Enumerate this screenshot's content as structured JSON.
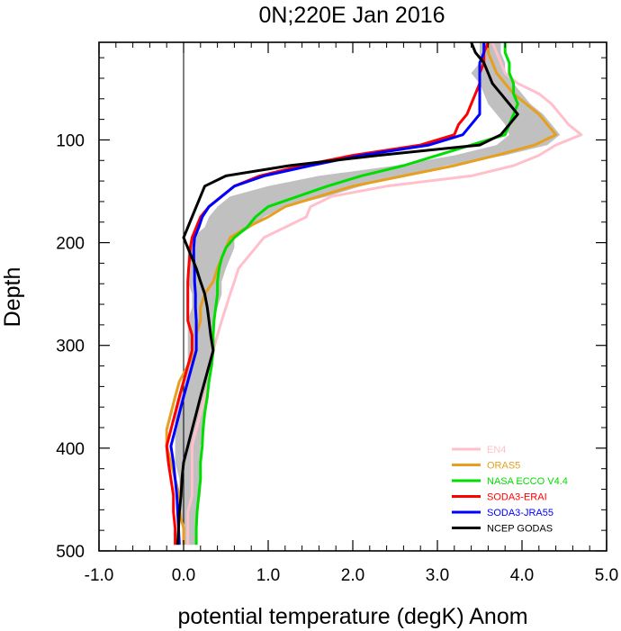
{
  "chart_data": {
    "type": "line",
    "title": "0N;220E Jan 2016",
    "xlabel": "potential temperature (degK)  Anom",
    "ylabel": "Depth",
    "xlim": [
      -1.0,
      5.0
    ],
    "ylim": [
      500,
      5
    ],
    "y_inverted": true,
    "x_ticks": [
      -1.0,
      0.0,
      1.0,
      2.0,
      3.0,
      4.0,
      5.0
    ],
    "x_tick_labels": [
      "-1.0",
      "0.0",
      "1.0",
      "2.0",
      "3.0",
      "4.0",
      "5.0"
    ],
    "y_ticks": [
      100,
      200,
      300,
      400,
      500
    ],
    "y_tick_labels": [
      "100",
      "200",
      "300",
      "400",
      "500"
    ],
    "zero_line": 0,
    "legend_position": "bottom-right",
    "spread_band": {
      "color": "#c0c0c0",
      "depths": [
        5,
        15,
        25,
        35,
        45,
        55,
        65,
        75,
        85,
        95,
        105,
        115,
        125,
        135,
        145,
        155,
        165,
        175,
        185,
        195,
        205,
        215,
        225,
        238,
        250,
        263,
        276,
        290,
        305,
        320,
        335,
        350,
        366,
        382,
        398,
        414,
        430,
        446,
        462,
        478,
        494
      ],
      "lower": [
        3.5,
        3.5,
        3.5,
        3.4,
        3.5,
        3.55,
        3.6,
        3.7,
        3.8,
        3.85,
        3.7,
        3.2,
        2.5,
        1.6,
        1.0,
        0.55,
        0.4,
        0.3,
        0.25,
        0.1,
        0.05,
        0.05,
        0.05,
        0.05,
        0.1,
        0.1,
        0.05,
        0.05,
        0.05,
        0.05,
        0.0,
        -0.05,
        -0.1,
        -0.1,
        -0.1,
        -0.1,
        -0.05,
        -0.05,
        -0.05,
        0.0,
        0.0
      ],
      "upper": [
        3.75,
        3.75,
        3.8,
        3.8,
        3.9,
        4.0,
        4.1,
        4.25,
        4.35,
        4.45,
        4.3,
        3.8,
        3.1,
        2.6,
        2.1,
        1.7,
        1.2,
        0.95,
        0.8,
        0.6,
        0.6,
        0.55,
        0.5,
        0.45,
        0.45,
        0.4,
        0.35,
        0.35,
        0.35,
        0.35,
        0.3,
        0.3,
        0.25,
        0.25,
        0.2,
        0.2,
        0.2,
        0.2,
        0.15,
        0.15,
        0.15
      ]
    },
    "series": [
      {
        "name": "EN4",
        "color": "#ffc0cb",
        "depths": [
          5,
          15,
          25,
          35,
          45,
          55,
          65,
          75,
          85,
          95,
          105,
          115,
          125,
          135,
          145,
          155,
          165,
          175,
          185,
          195,
          205,
          215,
          225,
          238,
          250,
          263,
          276,
          290,
          305,
          320,
          335,
          350,
          366,
          382,
          398,
          414,
          430,
          446,
          462,
          478,
          494
        ],
        "values": [
          3.65,
          3.7,
          3.75,
          3.8,
          3.95,
          4.2,
          4.35,
          4.45,
          4.55,
          4.7,
          4.4,
          4.2,
          3.9,
          3.4,
          2.4,
          1.75,
          1.5,
          1.45,
          1.2,
          0.95,
          0.85,
          0.75,
          0.65,
          0.6,
          0.55,
          0.5,
          0.45,
          0.4,
          0.35,
          0.3,
          0.3,
          0.25,
          0.2,
          0.15,
          0.1,
          0.1,
          0.1,
          0.1,
          0.05,
          0.05,
          0.05
        ]
      },
      {
        "name": "ORAS5",
        "color": "#e69f1e",
        "depths": [
          5,
          15,
          25,
          35,
          45,
          55,
          65,
          75,
          85,
          95,
          105,
          115,
          125,
          135,
          145,
          155,
          165,
          175,
          185,
          195,
          205,
          215,
          225,
          238,
          250,
          263,
          276,
          290,
          305,
          320,
          335,
          350,
          366,
          382,
          398,
          414,
          430,
          446,
          462,
          478,
          494
        ],
        "values": [
          3.6,
          3.6,
          3.65,
          3.7,
          3.8,
          3.9,
          4.05,
          4.2,
          4.3,
          4.4,
          4.15,
          3.7,
          3.2,
          2.6,
          2.0,
          1.6,
          1.2,
          1.0,
          0.75,
          0.55,
          0.5,
          0.45,
          0.4,
          0.35,
          0.25,
          0.2,
          0.2,
          0.15,
          0.15,
          0.05,
          -0.05,
          -0.1,
          -0.15,
          -0.2,
          -0.2,
          -0.15,
          -0.1,
          -0.05,
          -0.05,
          0.0,
          0.0
        ]
      },
      {
        "name": "NASA ECCO V4.4",
        "color": "#00dd00",
        "depths": [
          5,
          15,
          25,
          35,
          45,
          55,
          65,
          75,
          85,
          95,
          105,
          115,
          125,
          135,
          145,
          155,
          165,
          175,
          185,
          195,
          205,
          215,
          225,
          238,
          250,
          263,
          276,
          290,
          305,
          320,
          335,
          350,
          366,
          382,
          398,
          414,
          430,
          446,
          462,
          478,
          494
        ],
        "values": [
          3.8,
          3.8,
          3.85,
          3.85,
          3.9,
          3.9,
          3.95,
          3.9,
          3.85,
          3.8,
          3.4,
          3.0,
          2.6,
          2.1,
          1.7,
          1.35,
          1.0,
          0.85,
          0.75,
          0.6,
          0.5,
          0.45,
          0.42,
          0.4,
          0.4,
          0.38,
          0.36,
          0.35,
          0.35,
          0.33,
          0.3,
          0.28,
          0.25,
          0.23,
          0.22,
          0.2,
          0.2,
          0.18,
          0.16,
          0.15,
          0.15
        ]
      },
      {
        "name": "SODA3-ERAI",
        "color": "#ff0000",
        "depths": [
          5,
          15,
          25,
          35,
          45,
          55,
          65,
          75,
          85,
          95,
          105,
          115,
          125,
          135,
          145,
          155,
          165,
          175,
          185,
          195,
          205,
          215,
          225,
          238,
          250,
          263,
          276,
          290,
          305,
          320,
          335,
          350,
          366,
          382,
          398,
          414,
          430,
          446,
          462,
          478,
          494
        ],
        "values": [
          3.6,
          3.55,
          3.55,
          3.5,
          3.5,
          3.45,
          3.4,
          3.35,
          3.25,
          3.2,
          2.8,
          2.0,
          1.4,
          0.9,
          0.6,
          0.45,
          0.3,
          0.2,
          0.15,
          0.1,
          0.08,
          0.07,
          0.06,
          0.05,
          0.05,
          0.05,
          0.05,
          0.1,
          0.1,
          0.05,
          0.0,
          -0.05,
          -0.1,
          -0.15,
          -0.2,
          -0.18,
          -0.15,
          -0.12,
          -0.12,
          -0.1,
          -0.1
        ]
      },
      {
        "name": "SODA3-JRA55",
        "color": "#0000ff",
        "depths": [
          5,
          15,
          25,
          35,
          45,
          55,
          65,
          75,
          85,
          95,
          105,
          115,
          125,
          135,
          145,
          155,
          165,
          175,
          185,
          195,
          205,
          215,
          225,
          238,
          250,
          263,
          276,
          290,
          305,
          320,
          335,
          350,
          366,
          382,
          398,
          414,
          430,
          446,
          462,
          478,
          494
        ],
        "values": [
          3.55,
          3.55,
          3.5,
          3.5,
          3.5,
          3.5,
          3.5,
          3.5,
          3.4,
          3.3,
          2.9,
          2.1,
          1.5,
          0.95,
          0.6,
          0.45,
          0.3,
          0.22,
          0.18,
          0.13,
          0.12,
          0.12,
          0.13,
          0.13,
          0.14,
          0.14,
          0.15,
          0.15,
          0.15,
          0.1,
          0.05,
          0.0,
          -0.05,
          -0.1,
          -0.15,
          -0.12,
          -0.1,
          -0.08,
          -0.07,
          -0.06,
          -0.05
        ]
      },
      {
        "name": "NCEP GODAS",
        "color": "#000000",
        "depths": [
          5,
          15,
          25,
          35,
          45,
          55,
          65,
          75,
          85,
          95,
          105,
          115,
          125,
          135,
          145,
          155,
          165,
          175,
          185,
          195,
          205,
          215,
          225,
          238,
          250,
          263,
          276,
          290,
          305,
          320,
          335,
          350,
          366,
          382,
          398,
          414,
          430,
          446,
          462,
          478,
          494
        ],
        "values": [
          3.4,
          3.45,
          3.55,
          3.6,
          3.65,
          3.75,
          3.85,
          3.95,
          3.85,
          3.75,
          3.5,
          2.3,
          1.25,
          0.5,
          0.25,
          0.2,
          0.15,
          0.1,
          0.05,
          0.0,
          0.05,
          0.1,
          0.15,
          0.2,
          0.25,
          0.28,
          0.3,
          0.32,
          0.35,
          0.3,
          0.25,
          0.2,
          0.15,
          0.1,
          0.05,
          0.0,
          -0.02,
          -0.03,
          -0.05,
          -0.06,
          -0.07
        ]
      }
    ]
  }
}
